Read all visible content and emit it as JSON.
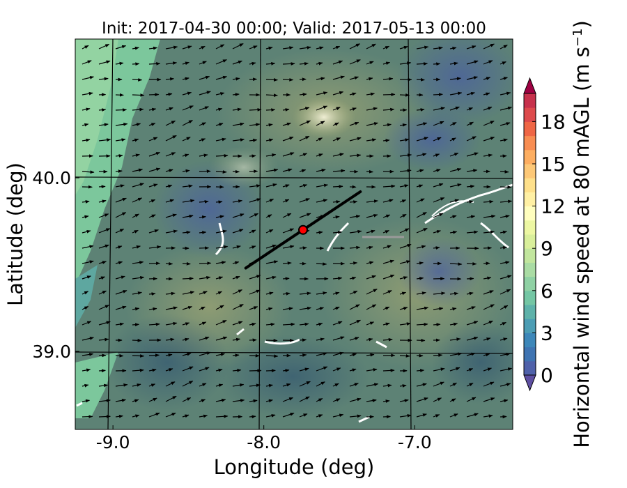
{
  "title": "Init: 2017-04-30 00:00; Valid: 2017-05-13 00:00",
  "xlabel": "Longitude (deg)",
  "ylabel": "Latitude (deg)",
  "x_ticks": [
    {
      "label": "-9.0",
      "value": -9.0
    },
    {
      "label": "-8.0",
      "value": -8.0
    },
    {
      "label": "-7.0",
      "value": -7.0
    }
  ],
  "y_ticks": [
    {
      "label": "40.0",
      "value": 40.0
    },
    {
      "label": "39.0",
      "value": 39.0
    }
  ],
  "colorbar": {
    "label_main": "Horizontal wind speed at 80 mAGL (m s",
    "label_exp": "−1",
    "label_end": ")",
    "ticks": [
      {
        "label": "0",
        "value": 0
      },
      {
        "label": "3",
        "value": 3
      },
      {
        "label": "6",
        "value": 6
      },
      {
        "label": "9",
        "value": 9
      },
      {
        "label": "12",
        "value": 12
      },
      {
        "label": "15",
        "value": 15
      },
      {
        "label": "18",
        "value": 18
      }
    ],
    "range": [
      0,
      20
    ],
    "step": 1,
    "colors": [
      "#5e4fa2",
      "#4f61aa",
      "#3f74b2",
      "#3d87b9",
      "#4c9db4",
      "#5eb2aa",
      "#74c6a4",
      "#8fd1a4",
      "#aadca4",
      "#c2e69e",
      "#d9ef9b",
      "#edf7a3",
      "#fffebe",
      "#fff0a4",
      "#fee08b",
      "#fdc877",
      "#fdae61",
      "#f88d52",
      "#ef6645",
      "#dd4a4c",
      "#c7314c",
      "#9e0142"
    ]
  },
  "map": {
    "lon_range": [
      -9.25,
      -6.35
    ],
    "lat_range": [
      38.55,
      40.8
    ],
    "site_marker": {
      "lon": -7.74,
      "lat": 39.7,
      "color": "#ff0000"
    },
    "transect": {
      "start": [
        -8.12,
        39.48
      ],
      "end": [
        -7.36,
        39.92
      ]
    }
  }
}
